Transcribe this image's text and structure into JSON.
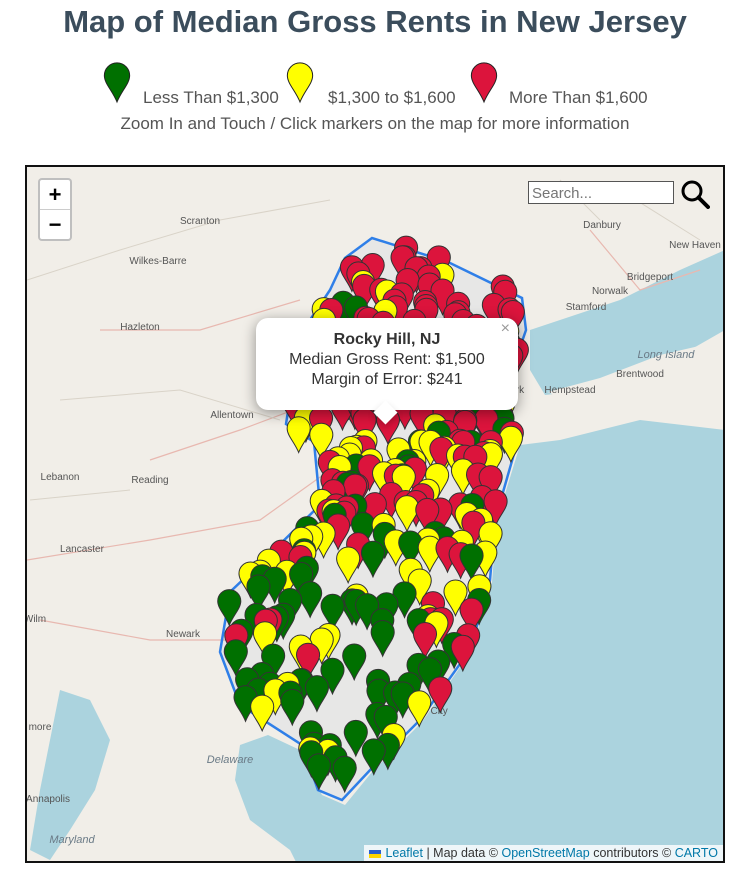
{
  "header": {
    "title": "Map of Median Gross Rents in New Jersey",
    "legend": [
      {
        "label": "Less Than $1,300",
        "color": "#007000"
      },
      {
        "label": "$1,300 to $1,600",
        "color": "#ffff00"
      },
      {
        "label": "More Than $1,600",
        "color": "#dc143c"
      }
    ],
    "subtitle": "Zoom In and Touch / Click markers on the map for more information"
  },
  "map": {
    "zoom_in": "+",
    "zoom_out": "−",
    "search_placeholder": "Search...",
    "popup": {
      "close": "×",
      "title": "Rocky Hill, NJ",
      "lines": [
        "Median Gross Rent: $1,500",
        "Margin of Error: $241"
      ]
    },
    "places": [
      "Scranton",
      "Wilkes-Barre",
      "Hazleton",
      "Allentown",
      "Lebanon",
      "Reading",
      "Lancaster",
      "Newark",
      "Wilm",
      "more",
      "Annapolis",
      "Maryland",
      "Delaware",
      "Danbury",
      "New Haven",
      "Bridgeport",
      "Norwalk",
      "Stamford",
      "Long Island",
      "Brentwood",
      "Hempstead",
      "rk",
      "ntic City"
    ],
    "attribution": {
      "leaflet": "Leaflet",
      "map_data": "| Map data ©",
      "osm": "OpenStreetMap",
      "contributors": "contributors ©",
      "carto": "CARTO"
    }
  }
}
